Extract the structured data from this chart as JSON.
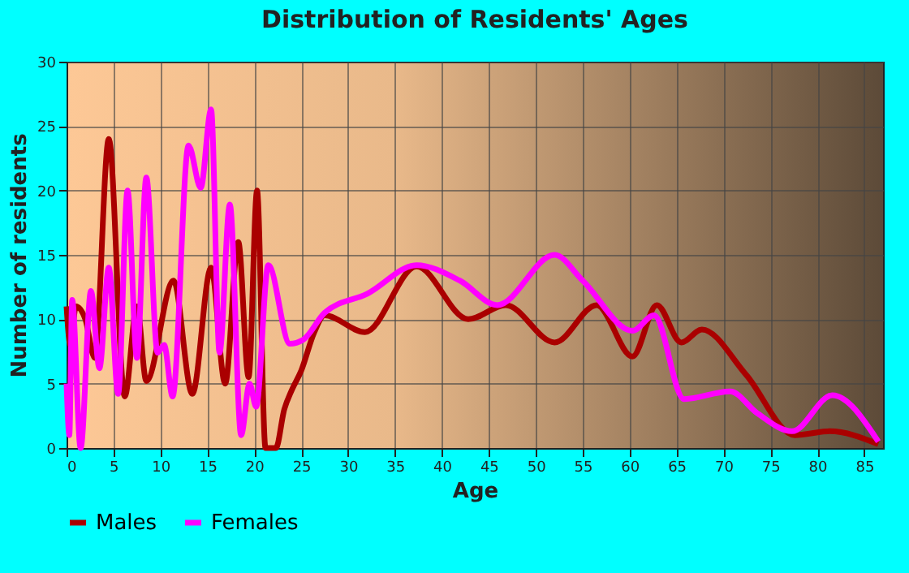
{
  "chart_data": {
    "type": "line",
    "title": "Distribution of Residents' Ages",
    "xlabel": "Age",
    "ylabel": "Number of residents",
    "xlim": [
      0,
      87
    ],
    "xticks": [
      0,
      5,
      10,
      15,
      20,
      25,
      30,
      35,
      40,
      45,
      50,
      55,
      60,
      65,
      70,
      75,
      80,
      85
    ],
    "ylim": [
      0,
      30
    ],
    "yticks": [
      0,
      5,
      10,
      15,
      20,
      25,
      30
    ],
    "grid": true,
    "legend": "bottom",
    "series": [
      {
        "name": "Males",
        "color": "#aa0000",
        "x": [
          0,
          0.4,
          1,
          2,
          3,
          4.5,
          6.2,
          7.5,
          8.5,
          11.4,
          13.4,
          15.4,
          16.9,
          18.3,
          19.4,
          20.3,
          21.2,
          22.3,
          23.2,
          24,
          25,
          26.4,
          27.5,
          31.8,
          37.3,
          42.8,
          46.8,
          52,
          56.5,
          60.3,
          62.9,
          65.5,
          67.7,
          72.4,
          77.6,
          81.3,
          86.5
        ],
        "values": [
          11,
          8,
          11,
          10,
          7,
          24,
          4,
          11,
          5.2,
          13,
          4.2,
          14,
          5,
          16,
          5.5,
          20,
          0,
          0,
          3,
          4.5,
          6,
          9,
          10.3,
          9,
          14.1,
          10,
          11.1,
          8.2,
          11.1,
          7.1,
          11.1,
          8.2,
          9.2,
          5.7,
          1,
          1.3,
          0.3
        ]
      },
      {
        "name": "Females",
        "color": "#ff00ff",
        "x": [
          0,
          0.3,
          0.6,
          1.5,
          2.6,
          3.5,
          4.5,
          5.5,
          6.5,
          7.5,
          8.5,
          9.7,
          10.4,
          11.3,
          13,
          14.3,
          15.4,
          16.3,
          17.4,
          18.6,
          19.5,
          20.2,
          21.5,
          23.8,
          25.2,
          27.5,
          32.1,
          37.3,
          41.9,
          45.9,
          52,
          55,
          60.3,
          62.6,
          65.8,
          70.7,
          73.6,
          77.3,
          81.6,
          86.5
        ],
        "values": [
          5,
          1,
          11.5,
          0,
          12.2,
          6.2,
          14,
          4.2,
          20,
          7,
          21,
          7.4,
          8,
          4,
          23.5,
          20.2,
          26.3,
          7.4,
          18.9,
          1,
          5,
          3.2,
          14.2,
          8.1,
          8.4,
          10.5,
          12,
          14.2,
          13,
          11.1,
          15,
          13,
          9.1,
          10.3,
          3.8,
          4.4,
          2.7,
          1.3,
          4.1,
          0.5
        ]
      }
    ]
  }
}
